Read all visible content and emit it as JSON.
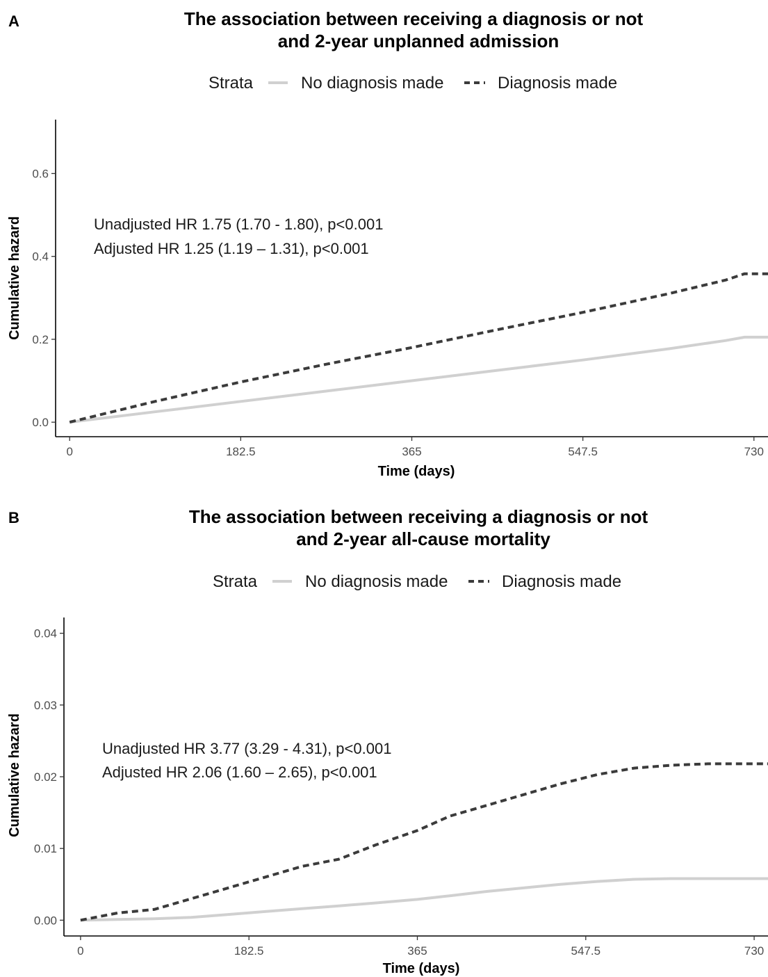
{
  "chart_data": [
    {
      "type": "line",
      "panel_label": "A",
      "title": [
        "The association between receiving a diagnosis or not",
        "and 2-year unplanned admission"
      ],
      "xlabel": "Time (days)",
      "ylabel": "Cumulative hazard",
      "xlim": [
        -15,
        745
      ],
      "ylim": [
        -0.035,
        0.73
      ],
      "x_ticks": [
        0,
        182.5,
        365,
        547.5,
        730
      ],
      "x_tick_labels": [
        "0",
        "182.5",
        "365",
        "547.5",
        "730"
      ],
      "y_ticks": [
        0.0,
        0.2,
        0.4,
        0.6
      ],
      "y_tick_labels": [
        "0.0",
        "0.2",
        "0.4",
        "0.6"
      ],
      "grid": false,
      "legend": {
        "position": "top",
        "title": "Strata",
        "entries": [
          "No diagnosis made",
          "Diagnosis made"
        ]
      },
      "annotations": [
        "Unadjusted HR 1.75 (1.70 - 1.80), p<0.001",
        "Adjusted HR 1.25 (1.19 – 1.31), p<0.001"
      ],
      "series": [
        {
          "name": "No diagnosis made",
          "style": "solid",
          "color": "#d0d0d0",
          "x": [
            0,
            91,
            182.5,
            274,
            365,
            456,
            547.5,
            639,
            700,
            720,
            745
          ],
          "y": [
            0,
            0.025,
            0.05,
            0.075,
            0.1,
            0.125,
            0.15,
            0.177,
            0.197,
            0.205,
            0.205
          ]
        },
        {
          "name": "Diagnosis made",
          "style": "dashed",
          "color": "#3b3b3b",
          "x": [
            0,
            91,
            182.5,
            274,
            365,
            456,
            547.5,
            639,
            700,
            720,
            745
          ],
          "y": [
            0,
            0.05,
            0.097,
            0.14,
            0.18,
            0.223,
            0.265,
            0.31,
            0.343,
            0.358,
            0.358
          ]
        }
      ]
    },
    {
      "type": "line",
      "panel_label": "B",
      "title": [
        "The association between receiving a diagnosis or not",
        "and 2-year all-cause mortality"
      ],
      "xlabel": "Time (days)",
      "ylabel": "Cumulative hazard",
      "xlim": [
        -18,
        745
      ],
      "ylim": [
        -0.0022,
        0.0422
      ],
      "x_ticks": [
        0,
        182.5,
        365,
        547.5,
        730
      ],
      "x_tick_labels": [
        "0",
        "182.5",
        "365",
        "547.5",
        "730"
      ],
      "y_ticks": [
        0.0,
        0.01,
        0.02,
        0.03,
        0.04
      ],
      "y_tick_labels": [
        "0.00",
        "0.01",
        "0.02",
        "0.03",
        "0.04"
      ],
      "grid": false,
      "legend": {
        "position": "top",
        "title": "Strata",
        "entries": [
          "No diagnosis made",
          "Diagnosis made"
        ]
      },
      "annotations": [
        "Unadjusted HR 3.77 (3.29 - 4.31), p<0.001",
        "Adjusted HR 2.06 (1.60 – 2.65), p<0.001"
      ],
      "series": [
        {
          "name": "No diagnosis made",
          "style": "solid",
          "color": "#d0d0d0",
          "x": [
            0,
            40,
            80,
            120,
            160,
            200,
            240,
            280,
            320,
            365,
            400,
            440,
            480,
            520,
            560,
            600,
            640,
            680,
            730,
            745
          ],
          "y": [
            0,
            0.0001,
            0.0002,
            0.0004,
            0.0008,
            0.0012,
            0.0016,
            0.002,
            0.0024,
            0.0029,
            0.0034,
            0.004,
            0.0045,
            0.005,
            0.0054,
            0.0057,
            0.0058,
            0.0058,
            0.0058,
            0.0058
          ]
        },
        {
          "name": "Diagnosis made",
          "style": "dashed",
          "color": "#3b3b3b",
          "x": [
            0,
            40,
            80,
            120,
            160,
            200,
            240,
            280,
            320,
            365,
            400,
            440,
            480,
            520,
            560,
            600,
            640,
            680,
            730,
            745
          ],
          "y": [
            0,
            0.001,
            0.0015,
            0.003,
            0.0045,
            0.006,
            0.0075,
            0.0085,
            0.0105,
            0.0125,
            0.0145,
            0.016,
            0.0175,
            0.019,
            0.0203,
            0.0212,
            0.0216,
            0.0218,
            0.0218,
            0.0218
          ]
        }
      ]
    }
  ]
}
